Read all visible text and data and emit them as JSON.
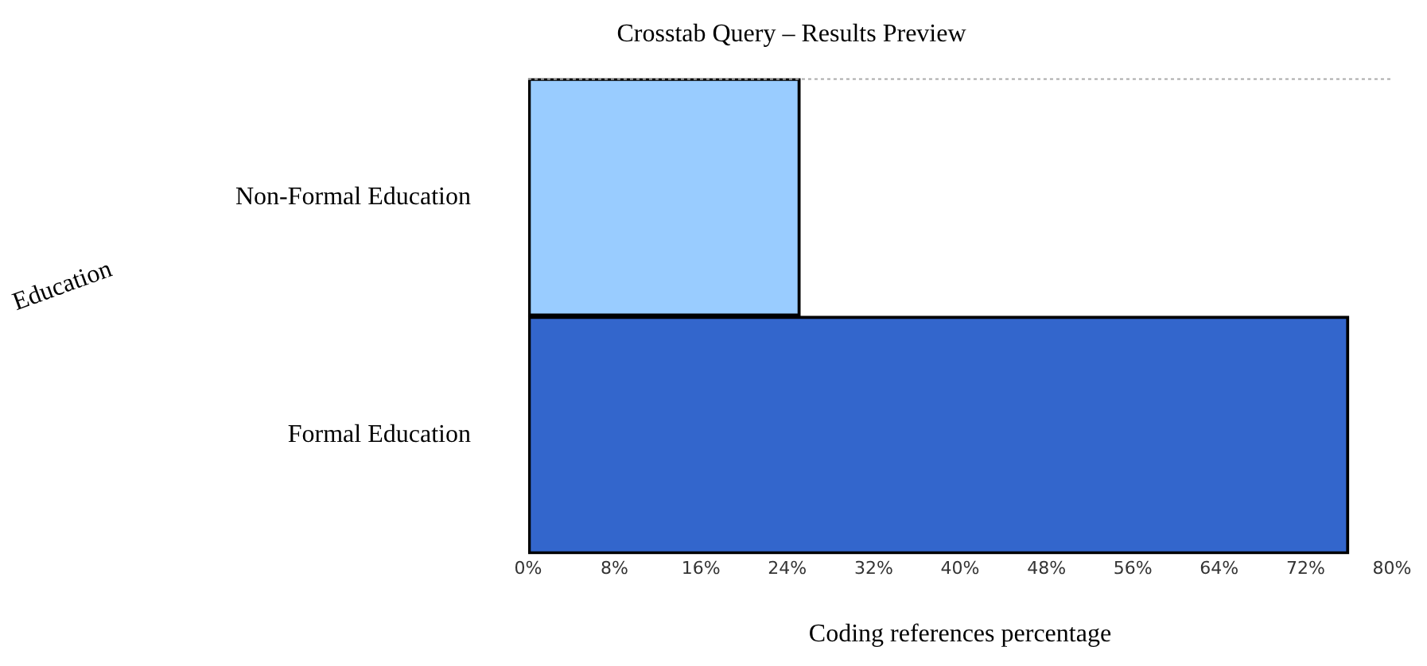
{
  "chart_data": {
    "type": "bar",
    "orientation": "horizontal",
    "title": "Crosstab Query – Results Preview",
    "xlabel": "Coding references percentage",
    "ylabel": "Education",
    "categories": [
      "Non-Formal Education",
      "Formal Education"
    ],
    "values": [
      25.2,
      76
    ],
    "colors": [
      "#99ccff",
      "#3366cc"
    ],
    "xlim": [
      0,
      80
    ],
    "xticks": [
      {
        "value": 0,
        "label": "0%"
      },
      {
        "value": 8,
        "label": "8%"
      },
      {
        "value": 16,
        "label": "16%"
      },
      {
        "value": 24,
        "label": "24%"
      },
      {
        "value": 32,
        "label": "32%"
      },
      {
        "value": 40,
        "label": "40%"
      },
      {
        "value": 48,
        "label": "48%"
      },
      {
        "value": 56,
        "label": "56%"
      },
      {
        "value": 64,
        "label": "64%"
      },
      {
        "value": 72,
        "label": "72%"
      },
      {
        "value": 80,
        "label": "80%"
      }
    ],
    "grid": false,
    "legend": false
  }
}
